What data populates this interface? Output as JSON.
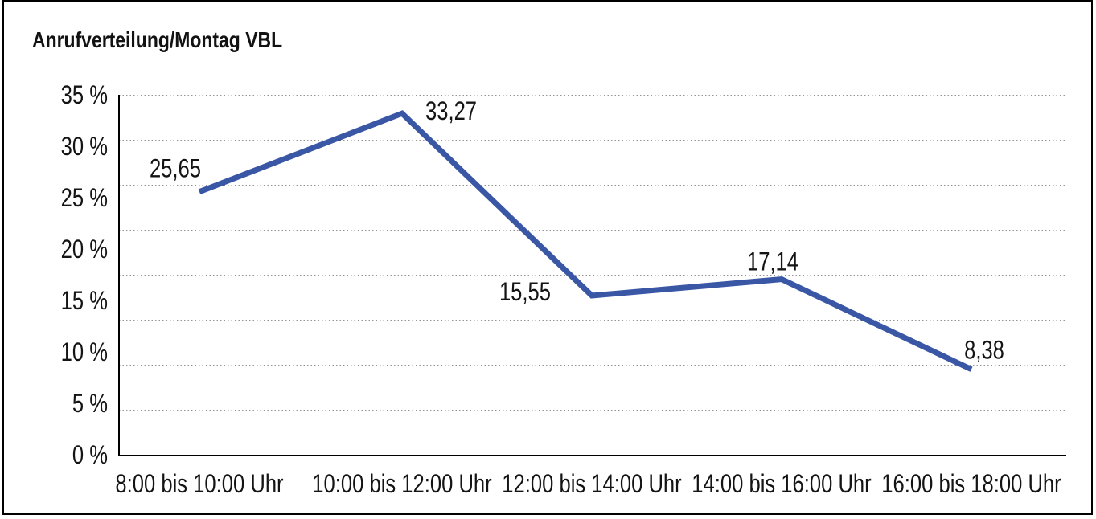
{
  "title": "Anrufverteilung/Montag VBL",
  "chart_data": {
    "type": "line",
    "title": "Anrufverteilung/Montag VBL",
    "categories": [
      "8:00 bis 10:00 Uhr",
      "10:00 bis 12:00 Uhr",
      "12:00 bis 14:00 Uhr",
      "14:00 bis 16:00 Uhr",
      "16:00 bis 18:00 Uhr"
    ],
    "values": [
      25.65,
      33.27,
      15.55,
      17.14,
      8.38
    ],
    "point_labels": [
      "25,65",
      "33,27",
      "15,55",
      "17,14",
      "8,38"
    ],
    "y_tick_labels": [
      "35 %",
      "30 %",
      "25 %",
      "20 %",
      "15 %",
      "10 %",
      "5 %",
      "0 %"
    ],
    "ylim": [
      0,
      35
    ],
    "y_tick_step": 5,
    "xlabel": "",
    "ylabel": "",
    "unit": "%",
    "decimal_separator": ",",
    "grid": "horizontal-dotted",
    "legend": "none",
    "colors": {
      "line": "#3A57A5",
      "text": "#141414",
      "grid": "#555555",
      "axis": "#000000",
      "frame": "#000000",
      "background": "#FFFFFF"
    }
  }
}
